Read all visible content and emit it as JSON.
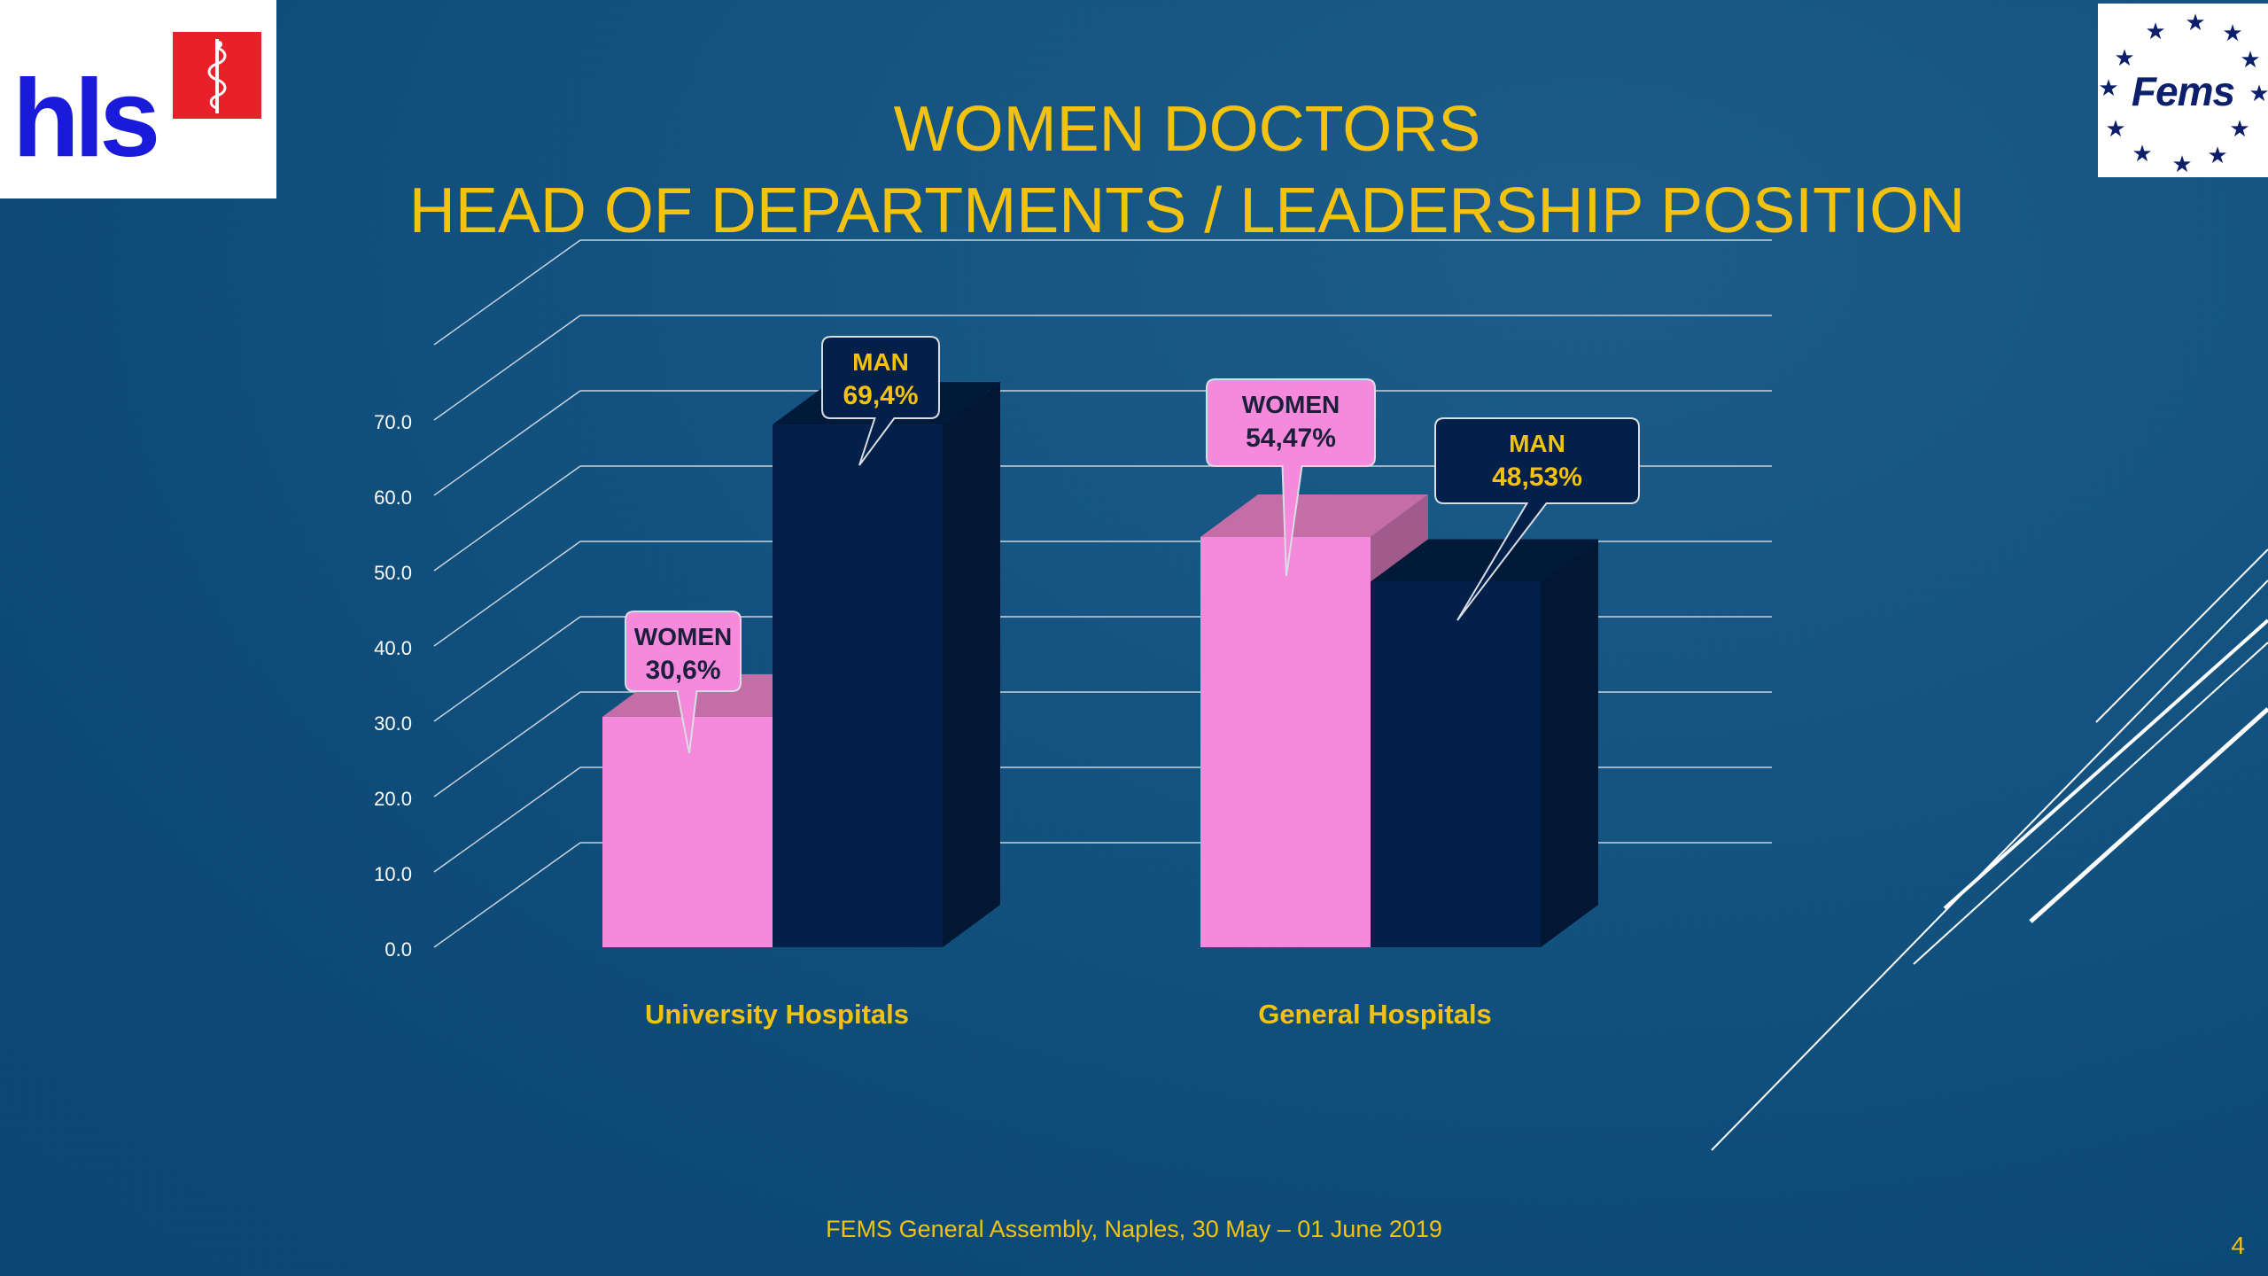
{
  "title": {
    "line1": "WOMEN DOCTORS",
    "line2": "HEAD OF DEPARTMENTS / LEADERSHIP POSITION"
  },
  "logos": {
    "left_text": "hls",
    "right_text": "Fems"
  },
  "footer": "FEMS General Assembly, Naples, 30 May – 01 June 2019",
  "page_number": "4",
  "colors": {
    "women": "#f58add",
    "man": "#02204a",
    "title": "#f2c20f",
    "background": "#0d4a78"
  },
  "chart_data": {
    "type": "bar",
    "categories": [
      "University Hospitals",
      "General Hospitals"
    ],
    "series": [
      {
        "name": "WOMEN",
        "values": [
          30.6,
          54.47
        ]
      },
      {
        "name": "MAN",
        "values": [
          69.4,
          48.53
        ]
      }
    ],
    "data_labels": [
      [
        "30,6%",
        "54,47%"
      ],
      [
        "69,4%",
        "48,53%"
      ]
    ],
    "yticks": [
      "0.0",
      "10.0",
      "20.0",
      "30.0",
      "40.0",
      "50.0",
      "60.0",
      "70.0"
    ],
    "ylim": [
      0,
      80
    ],
    "grid": true,
    "legend": "none"
  }
}
